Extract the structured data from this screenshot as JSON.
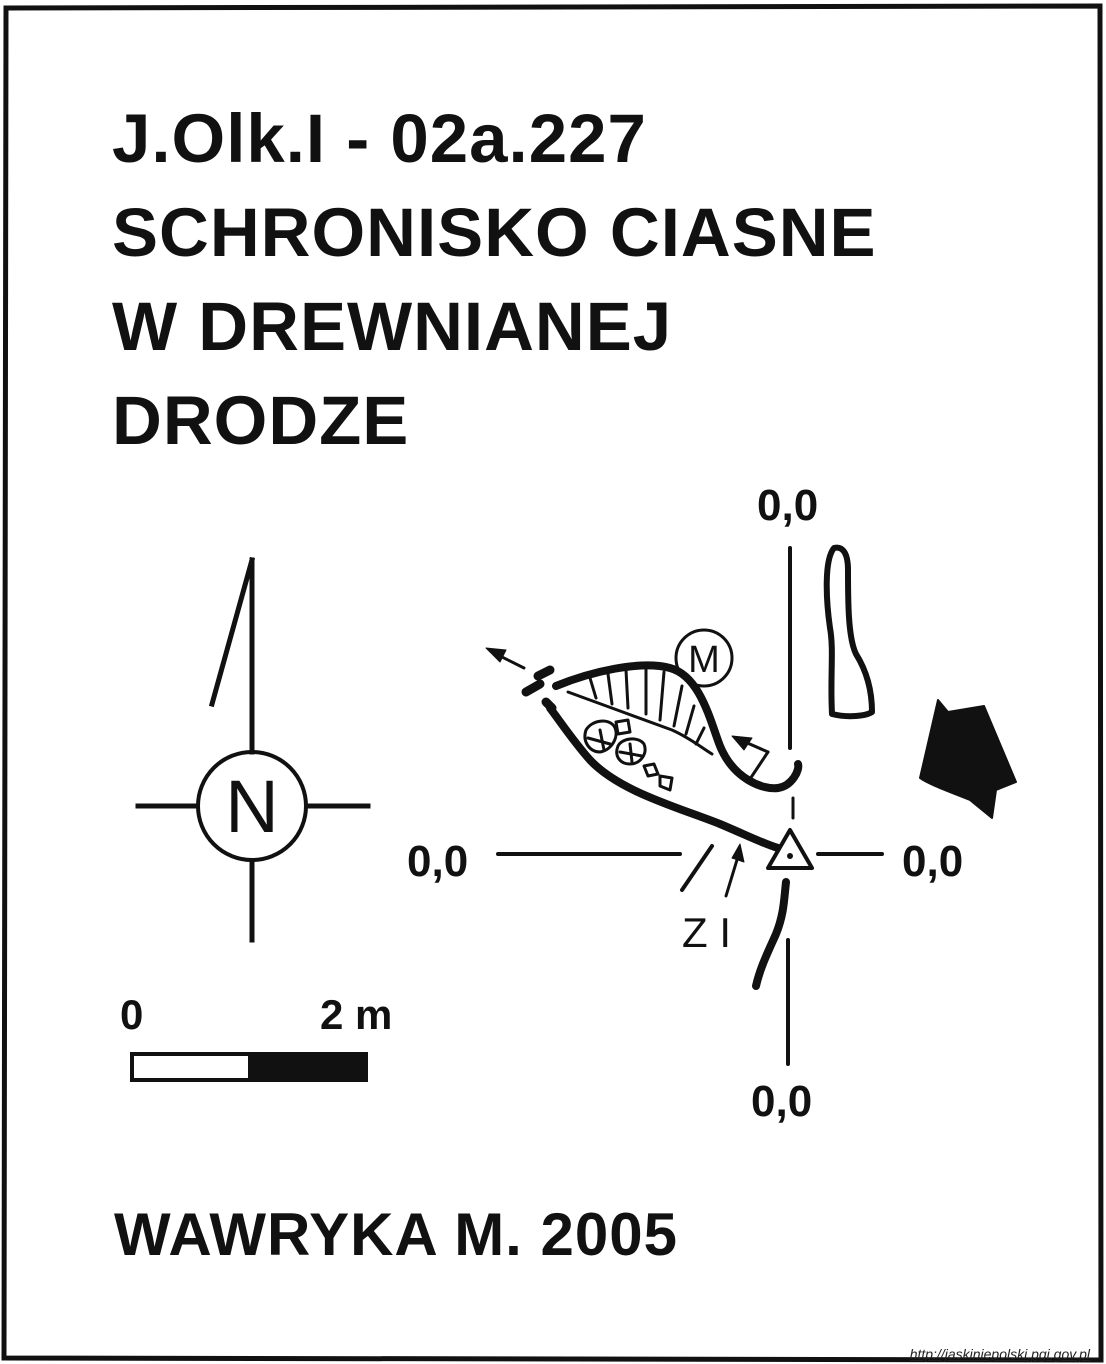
{
  "title": {
    "line1": "J.Olk.I - 02a.227",
    "line2": "SCHRONISKO CIASNE",
    "line3": "W DREWNIANEJ",
    "line4": "DRODZE"
  },
  "author": "WAWRYKA M. 2005",
  "compass": {
    "letter": "N"
  },
  "scale": {
    "start_label": "0",
    "end_label": "2 m"
  },
  "datum_labels": {
    "top": "0,0",
    "left": "0,0",
    "right": "0,0",
    "bottom": "0,0"
  },
  "map_symbols": {
    "moonmilk": "M",
    "section_label": "Z I"
  },
  "source": "http://jaskiniepolski.pgi.gov.pl",
  "colors": {
    "ink": "#111111",
    "background": "#ffffff"
  },
  "icons": [
    "compass-rose-icon",
    "north-arrow-icon",
    "entrance-arrow-icon",
    "fixed-point-triangle-icon",
    "moonmilk-circle-icon"
  ]
}
